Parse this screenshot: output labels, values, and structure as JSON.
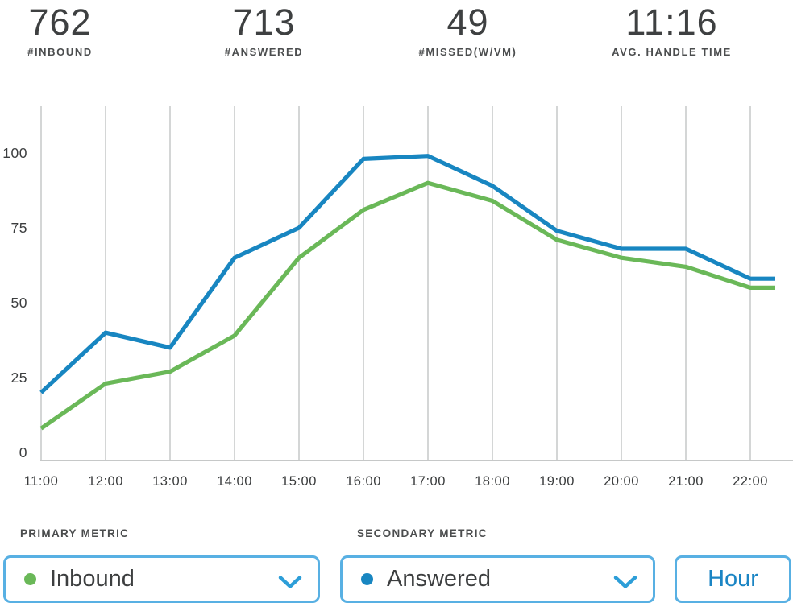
{
  "colors": {
    "answered_blue": "#1886c1",
    "inbound_green": "#6ab858",
    "control_border_blue": "#58b0e3",
    "chevron_blue": "#2d9ed8",
    "hour_text_blue": "#1b85c4",
    "grid_gray": "#c9cbcb",
    "axis_gray": "#b3b5b5",
    "text_dark": "#3e4041"
  },
  "stats": [
    {
      "value": "762",
      "label": "#INBOUND"
    },
    {
      "value": "713",
      "label": "#ANSWERED"
    },
    {
      "value": "49",
      "label": "#MISSED(W/VM)"
    },
    {
      "value": "11:16",
      "label": "AVG. HANDLE TIME"
    }
  ],
  "chart_data": {
    "type": "line",
    "categories": [
      "11:00",
      "12:00",
      "13:00",
      "14:00",
      "15:00",
      "16:00",
      "17:00",
      "18:00",
      "19:00",
      "20:00",
      "21:00",
      "22:00"
    ],
    "series": [
      {
        "name": "Inbound",
        "color": "#6ab858",
        "values": [
          8,
          23,
          27,
          39,
          65,
          81,
          90,
          84,
          71,
          65,
          62,
          55
        ]
      },
      {
        "name": "Answered",
        "color": "#1886c1",
        "values": [
          20,
          40,
          35,
          65,
          75,
          98,
          99,
          89,
          74,
          68,
          68,
          58
        ]
      }
    ],
    "yticks": [
      0,
      25,
      50,
      75,
      100
    ],
    "ylim": [
      0,
      115
    ],
    "xlabel": "",
    "ylabel": "",
    "title": "",
    "grid": "vertical-only",
    "legend_position": "none",
    "grid_color": "#c9cbcb",
    "axis_color": "#b3b5b5",
    "note": "lines extend flat slightly past 22:00"
  },
  "controls": {
    "primary": {
      "label": "PRIMARY METRIC",
      "selected": "Inbound",
      "dot_color": "#6ab858"
    },
    "secondary": {
      "label": "SECONDARY METRIC",
      "selected": "Answered",
      "dot_color": "#1886c1"
    },
    "interval_button": "Hour"
  }
}
